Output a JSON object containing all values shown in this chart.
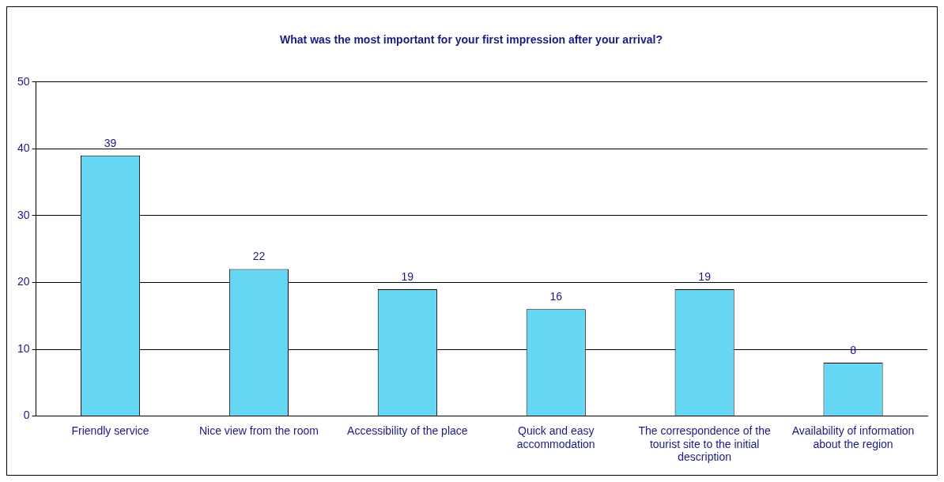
{
  "chart_data": {
    "type": "bar",
    "title": "What was the most important for your first impression after your arrival?",
    "categories": [
      "Friendly service",
      "Nice view from the room",
      "Accessibility of the place",
      "Quick and easy accommodation",
      "The correspondence of the tourist site to the initial description",
      "Availability of information about the region"
    ],
    "values": [
      39,
      22,
      19,
      16,
      19,
      8
    ],
    "color": "#66d6f5",
    "ylim": [
      0,
      50
    ],
    "yticks": [
      0,
      10,
      20,
      30,
      40,
      50
    ],
    "grid": "y",
    "legend": false,
    "data_labels": true
  }
}
